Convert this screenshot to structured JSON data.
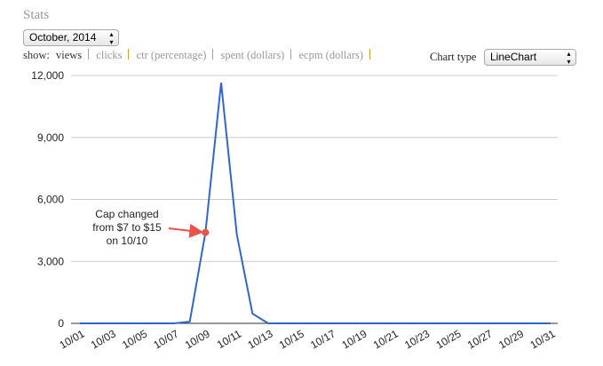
{
  "header": {
    "title": "Stats",
    "period": "October, 2014"
  },
  "show": {
    "label": "show:",
    "options": [
      "views",
      "clicks",
      "ctr (percentage)",
      "spent (dollars)",
      "ecpm (dollars)"
    ]
  },
  "chart_type": {
    "label": "Chart type",
    "value": "LineChart"
  },
  "chart_data": {
    "type": "line",
    "categories": [
      "10/01",
      null,
      "10/03",
      null,
      "10/05",
      null,
      "10/07",
      null,
      "10/09",
      null,
      "10/11",
      null,
      "10/13",
      null,
      "10/15",
      null,
      "10/17",
      null,
      "10/19",
      null,
      "10/21",
      null,
      "10/23",
      null,
      "10/25",
      null,
      "10/27",
      null,
      "10/29",
      null,
      "10/31"
    ],
    "series": [
      {
        "name": "views",
        "color": "#3366cc",
        "values": [
          0,
          0,
          0,
          0,
          0,
          0,
          0,
          80,
          4400,
          11650,
          4300,
          470,
          0,
          0,
          0,
          0,
          0,
          0,
          0,
          0,
          0,
          0,
          0,
          0,
          0,
          0,
          0,
          0,
          0,
          0,
          0
        ]
      }
    ],
    "ylim": [
      0,
      12000
    ],
    "yticks": [
      0,
      {
        "value": 3000,
        "label": "3,000"
      },
      {
        "value": 6000,
        "label": "6,000"
      },
      {
        "value": 9000,
        "label": "9,000"
      },
      {
        "value": 12000,
        "label": "12,000"
      }
    ],
    "grid": true,
    "annotation": {
      "lines": [
        "Cap changed",
        "from $7 to $15",
        "on 10/10"
      ],
      "index": 8,
      "color": "#e8534a"
    }
  }
}
